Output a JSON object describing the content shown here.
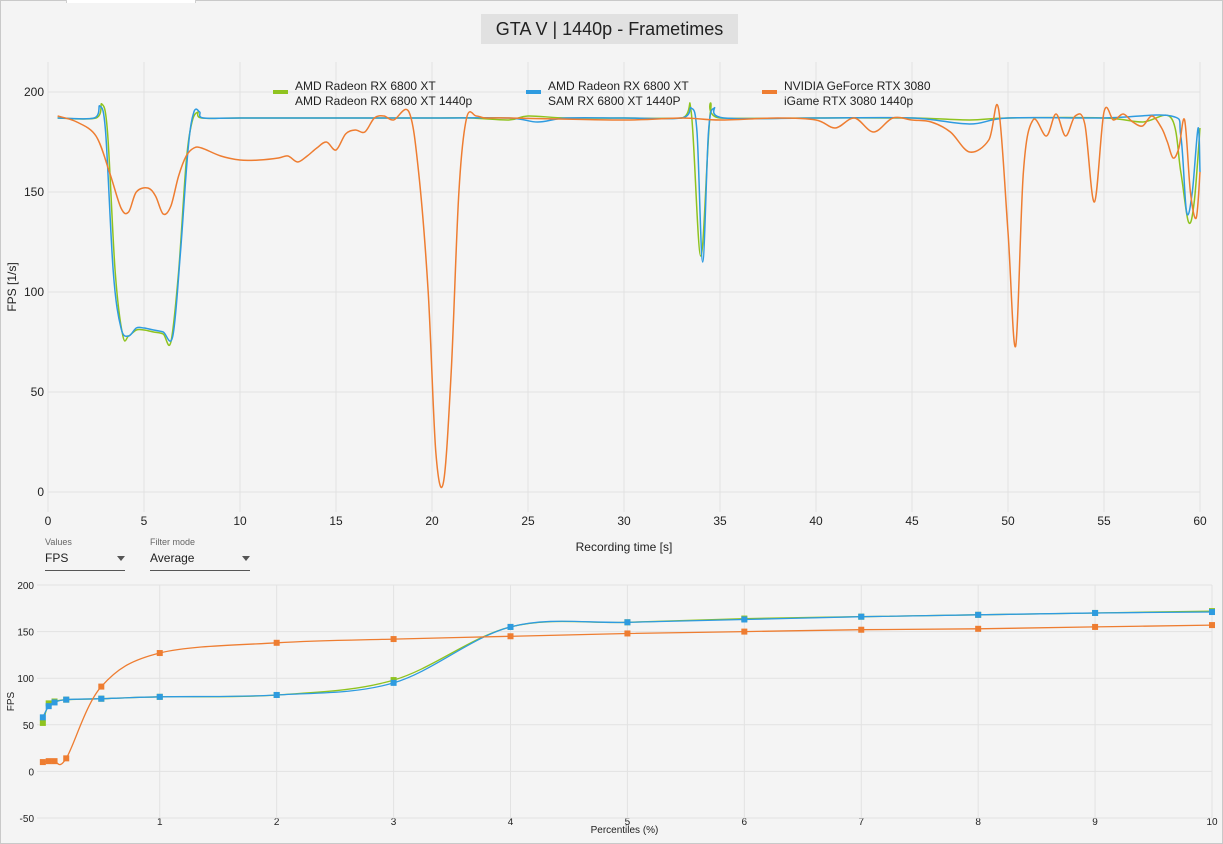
{
  "title": "GTA V | 1440p - Frametimes",
  "controls": {
    "values": {
      "label": "Values",
      "selected": "FPS"
    },
    "filter": {
      "label": "Filter mode",
      "selected": "Average"
    }
  },
  "colors": {
    "green": "#8fc31f",
    "blue": "#2e9be0",
    "orange": "#ee7d31"
  },
  "chart_data": [
    {
      "type": "line",
      "xlabel": "Recording time [s]",
      "ylabel": "FPS [1/s]",
      "xlim": [
        0,
        60
      ],
      "ylim": [
        -10,
        215
      ],
      "xticks": [
        0,
        5,
        10,
        15,
        20,
        25,
        30,
        35,
        40,
        45,
        50,
        55,
        60
      ],
      "yticks": [
        0,
        50,
        100,
        150,
        200
      ],
      "grid": true,
      "legend_position": "top",
      "series": [
        {
          "name": "AMD Radeon RX 6800 XT",
          "name2": "AMD Radeon RX 6800 XT 1440p",
          "color": "#8fc31f",
          "x": [
            0.5,
            2.5,
            2.8,
            3.1,
            3.5,
            3.9,
            4.2,
            4.6,
            5.0,
            5.5,
            6.0,
            6.4,
            6.8,
            7.2,
            7.5,
            7.8,
            8.0,
            10,
            15,
            20,
            22,
            24,
            25,
            27,
            30,
            33,
            33.5,
            34.0,
            34.5,
            35,
            40,
            45,
            48,
            50,
            55,
            57,
            58.5,
            59.0,
            59.4,
            59.7,
            60
          ],
          "y": [
            187,
            187,
            194,
            180,
            110,
            78,
            78,
            81,
            81,
            80,
            79,
            75,
            110,
            165,
            185,
            190,
            187,
            187,
            187,
            187,
            187,
            186,
            188,
            187,
            187,
            187,
            190,
            118,
            190,
            187,
            187,
            187,
            186,
            187,
            187,
            185,
            187,
            160,
            135,
            145,
            182
          ]
        },
        {
          "name": "AMD Radeon RX 6800 XT",
          "name2": "SAM RX 6800 XT 1440P",
          "color": "#2e9be0",
          "x": [
            0.5,
            2.4,
            2.7,
            3.0,
            3.4,
            3.8,
            4.2,
            4.6,
            5.0,
            5.5,
            6.0,
            6.5,
            6.9,
            7.3,
            7.6,
            7.9,
            8.1,
            10,
            15,
            20,
            24,
            25.5,
            27,
            30,
            33,
            33.5,
            33.8,
            34.1,
            34.4,
            34.7,
            35.2,
            40,
            45,
            48,
            50,
            55,
            58.5,
            59.0,
            59.3,
            59.6,
            59.9,
            60
          ],
          "y": [
            187,
            187,
            193,
            180,
            110,
            82,
            78,
            82,
            82,
            81,
            80,
            78,
            120,
            172,
            190,
            190,
            187,
            187,
            187,
            187,
            187,
            185,
            187,
            187,
            187,
            192,
            180,
            115,
            180,
            192,
            187,
            187,
            187,
            184,
            187,
            187,
            188,
            178,
            140,
            150,
            182,
            160
          ]
        },
        {
          "name": "NVIDIA GeForce RTX 3080",
          "name2": "iGame RTX 3080 1440p",
          "color": "#ee7d31",
          "x": [
            0.5,
            1.5,
            2.5,
            3.2,
            3.8,
            4.2,
            4.6,
            5.2,
            5.6,
            6.0,
            6.4,
            6.8,
            7.2,
            7.6,
            8.0,
            9.0,
            10.0,
            11.0,
            12.0,
            12.5,
            13.0,
            13.5,
            14.0,
            14.5,
            15.0,
            15.5,
            16.0,
            16.5,
            17.0,
            17.5,
            18.0,
            18.8,
            19.3,
            19.8,
            20.2,
            20.6,
            21.0,
            21.4,
            21.8,
            22.3,
            22.8,
            24,
            30,
            33,
            35,
            38,
            40,
            41,
            42,
            43,
            44,
            45,
            46,
            47,
            48,
            49,
            49.5,
            50.0,
            50.4,
            50.8,
            51.3,
            52,
            52.5,
            53,
            53.5,
            54,
            54.5,
            55,
            55.5,
            56,
            56.5,
            57,
            57.5,
            58,
            58.3,
            58.6,
            58.9,
            59.2,
            59.5,
            59.8,
            60
          ],
          "y": [
            188,
            185,
            178,
            160,
            142,
            140,
            150,
            152,
            148,
            139,
            143,
            158,
            168,
            172,
            172,
            168,
            166,
            166,
            167,
            168,
            165,
            168,
            172,
            175,
            171,
            179,
            181,
            180,
            187,
            188,
            186,
            190,
            160,
            100,
            20,
            5,
            60,
            150,
            187,
            188,
            187,
            187,
            186,
            187,
            186,
            187,
            186,
            182,
            187,
            180,
            187,
            186,
            185,
            180,
            170,
            176,
            192,
            130,
            73,
            160,
            186,
            178,
            189,
            178,
            188,
            184,
            145,
            190,
            186,
            189,
            185,
            183,
            188,
            182,
            175,
            167,
            172,
            186,
            150,
            137,
            160
          ]
        }
      ]
    },
    {
      "type": "line",
      "xlabel": "Percentiles (%)",
      "ylabel": "FPS",
      "xlim": [
        -0.05,
        10
      ],
      "ylim": [
        -50,
        200
      ],
      "xticks": [
        1,
        2,
        3,
        4,
        5,
        6,
        7,
        8,
        9,
        10
      ],
      "yticks": [
        -50,
        0,
        50,
        100,
        150,
        200
      ],
      "grid": true,
      "series": [
        {
          "name": "AMD Radeon RX 6800 XT 1440p",
          "color": "#8fc31f",
          "marker": "square",
          "x": [
            0.0,
            0.05,
            0.1,
            0.2,
            0.5,
            1,
            2,
            3,
            4,
            5,
            6,
            7,
            8,
            9,
            10
          ],
          "y": [
            52,
            73,
            75,
            77,
            78,
            80,
            82,
            98,
            155,
            160,
            164,
            166,
            168,
            170,
            172
          ]
        },
        {
          "name": "SAM RX 6800 XT 1440P",
          "color": "#2e9be0",
          "marker": "square",
          "x": [
            0.0,
            0.05,
            0.1,
            0.2,
            0.5,
            1,
            2,
            3,
            4,
            5,
            6,
            7,
            8,
            9,
            10
          ],
          "y": [
            58,
            70,
            74,
            77,
            78,
            80,
            82,
            95,
            155,
            160,
            163,
            166,
            168,
            170,
            171
          ]
        },
        {
          "name": "iGame RTX 3080 1440p",
          "color": "#ee7d31",
          "marker": "square",
          "x": [
            0.0,
            0.05,
            0.1,
            0.2,
            0.5,
            1,
            2,
            3,
            4,
            5,
            6,
            7,
            8,
            9,
            10
          ],
          "y": [
            10,
            11,
            11,
            14,
            91,
            127,
            138,
            142,
            145,
            148,
            150,
            152,
            153,
            155,
            157
          ]
        }
      ]
    }
  ]
}
